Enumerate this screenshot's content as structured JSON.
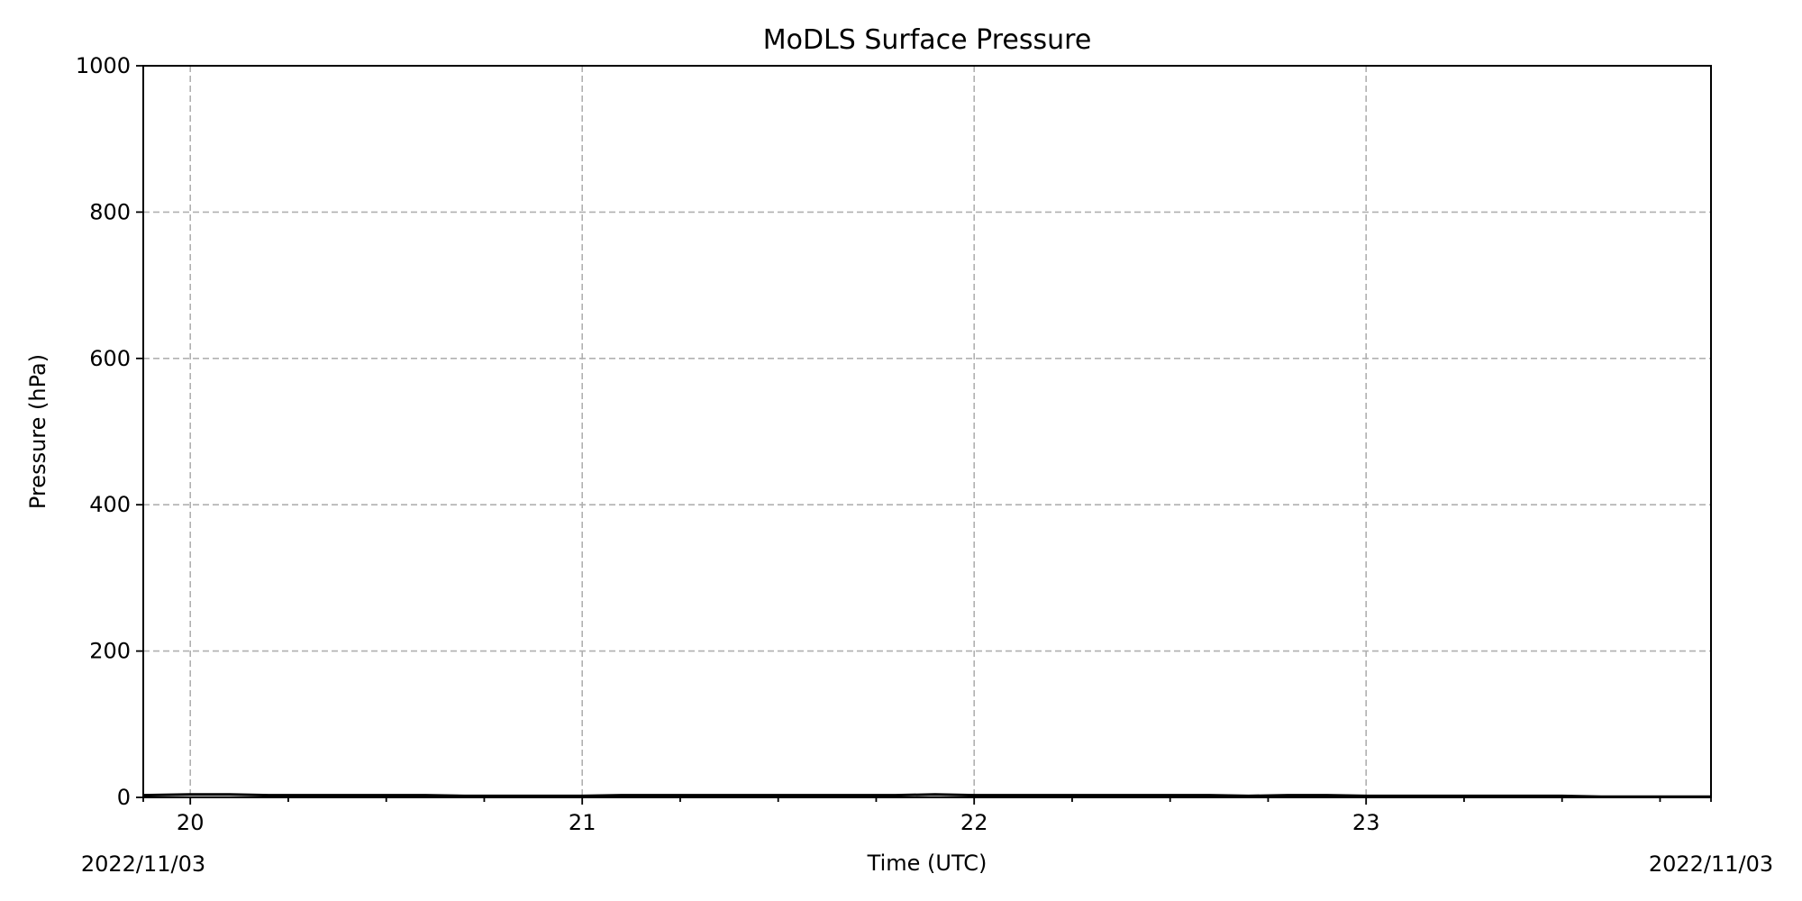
{
  "chart_data": {
    "type": "line",
    "title": "MoDLS Surface Pressure",
    "xlabel": "Time (UTC)",
    "ylabel": "Pressure (hPa)",
    "x_unit": "hour (UTC)",
    "xlim": [
      19.88,
      23.88
    ],
    "ylim": [
      0,
      1000
    ],
    "xticks": [
      20,
      21,
      22,
      23
    ],
    "xtick_labels": [
      "20",
      "21",
      "22",
      "23"
    ],
    "x_minor_ticks": [
      19.88,
      20.25,
      20.5,
      20.75,
      21.25,
      21.5,
      21.75,
      22.25,
      22.5,
      22.75,
      23.25,
      23.5,
      23.75,
      23.88
    ],
    "yticks": [
      0,
      200,
      400,
      600,
      800,
      1000
    ],
    "ytick_labels": [
      "0",
      "200",
      "400",
      "600",
      "800",
      "1000"
    ],
    "date_left": "2022/11/03",
    "date_right": "2022/11/03",
    "grid": true,
    "series": [
      {
        "color": "#000000",
        "x": [
          19.88,
          20.0,
          20.1,
          20.2,
          20.3,
          20.4,
          20.5,
          20.6,
          20.7,
          20.8,
          20.9,
          21.0,
          21.1,
          21.2,
          21.3,
          21.4,
          21.5,
          21.6,
          21.7,
          21.8,
          21.9,
          22.0,
          22.1,
          22.2,
          22.3,
          22.4,
          22.5,
          22.6,
          22.7,
          22.8,
          22.9,
          23.0,
          23.1,
          23.2,
          23.3,
          23.4,
          23.5,
          23.6,
          23.7,
          23.88
        ],
        "y": [
          3,
          4,
          4,
          3,
          3,
          3,
          3,
          3,
          2,
          2,
          2,
          2,
          3,
          3,
          3,
          3,
          3,
          3,
          3,
          3,
          4,
          3,
          3,
          3,
          3,
          3,
          3,
          3,
          2,
          3,
          3,
          2,
          2,
          2,
          2,
          2,
          2,
          1,
          1,
          1
        ]
      }
    ]
  }
}
